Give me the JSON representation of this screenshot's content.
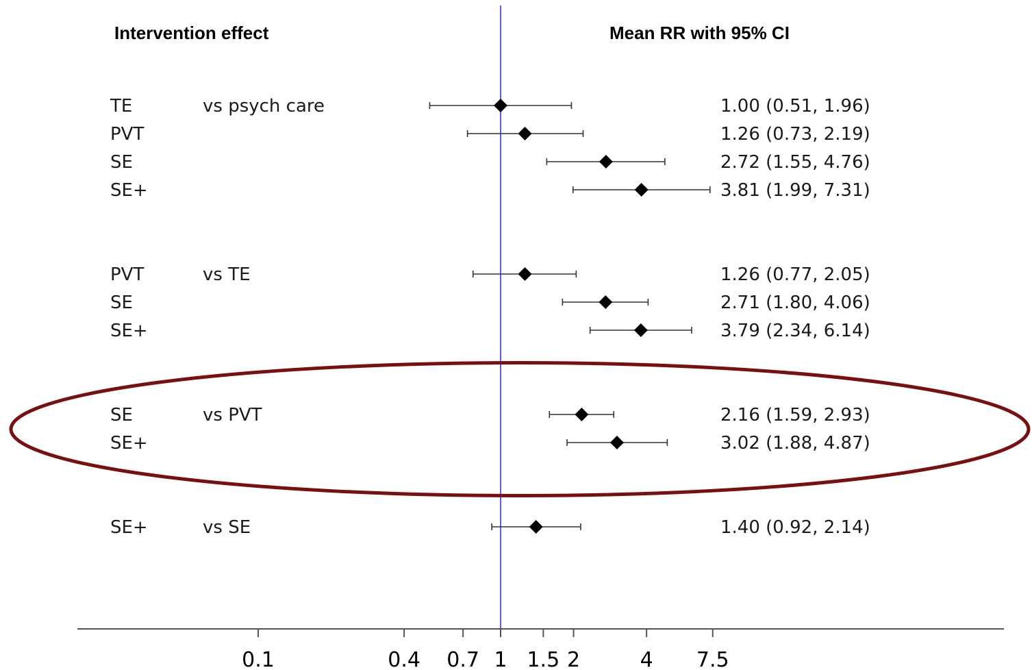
{
  "chart_data": {
    "type": "forest",
    "title": "",
    "headers": {
      "left": "Intervention effect",
      "right": "Mean RR with 95% CI"
    },
    "xscale": "log",
    "xlim": [
      0.02,
      60
    ],
    "reference_line": 1,
    "reference_color": "#3333ff",
    "xticks": [
      0.1,
      0.4,
      0.7,
      1,
      1.5,
      2,
      4,
      7.5
    ],
    "xtick_labels": [
      "0.1",
      "0.4",
      "0.7",
      "1",
      "1.5",
      "2",
      "4",
      "7.5"
    ],
    "groups": [
      {
        "comparator": "vs psych care",
        "rows": [
          {
            "treatment": "TE",
            "mean": 1.0,
            "lower": 0.51,
            "upper": 1.96,
            "text": "1.00 (0.51, 1.96)"
          },
          {
            "treatment": "PVT",
            "mean": 1.26,
            "lower": 0.73,
            "upper": 2.19,
            "text": "1.26 (0.73, 2.19)"
          },
          {
            "treatment": "SE",
            "mean": 2.72,
            "lower": 1.55,
            "upper": 4.76,
            "text": "2.72 (1.55, 4.76)"
          },
          {
            "treatment": "SE+",
            "mean": 3.81,
            "lower": 1.99,
            "upper": 7.31,
            "text": "3.81 (1.99, 7.31)"
          }
        ]
      },
      {
        "comparator": "vs TE",
        "rows": [
          {
            "treatment": "PVT",
            "mean": 1.26,
            "lower": 0.77,
            "upper": 2.05,
            "text": "1.26 (0.77, 2.05)"
          },
          {
            "treatment": "SE",
            "mean": 2.71,
            "lower": 1.8,
            "upper": 4.06,
            "text": "2.71 (1.80, 4.06)"
          },
          {
            "treatment": "SE+",
            "mean": 3.79,
            "lower": 2.34,
            "upper": 6.14,
            "text": "3.79 (2.34, 6.14)"
          }
        ]
      },
      {
        "comparator": "vs PVT",
        "highlighted": true,
        "rows": [
          {
            "treatment": "SE",
            "mean": 2.16,
            "lower": 1.59,
            "upper": 2.93,
            "text": "2.16 (1.59, 2.93)"
          },
          {
            "treatment": "SE+",
            "mean": 3.02,
            "lower": 1.88,
            "upper": 4.87,
            "text": "3.02 (1.88, 4.87)"
          }
        ]
      },
      {
        "comparator": "vs SE",
        "rows": [
          {
            "treatment": "SE+",
            "mean": 1.4,
            "lower": 0.92,
            "upper": 2.14,
            "text": "1.40 (0.92, 2.14)"
          }
        ]
      }
    ],
    "highlight_color": "#7a0f0f"
  }
}
